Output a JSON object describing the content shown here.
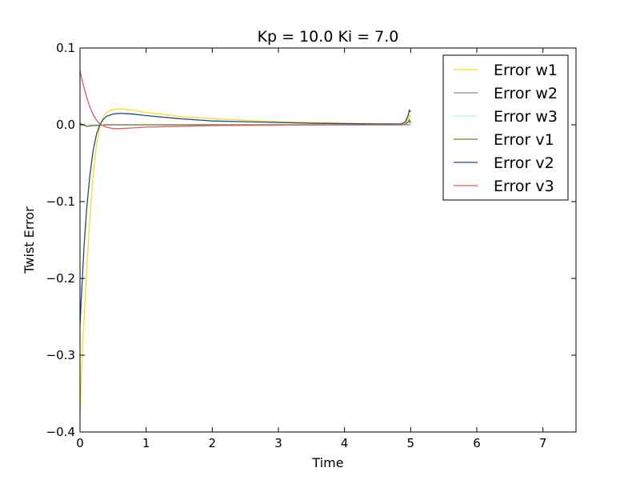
{
  "chart_data": {
    "type": "line",
    "title": "Kp = 10.0 Ki = 7.0",
    "xlabel": "Time",
    "ylabel": "Twist Error",
    "xlim": [
      0,
      7.5
    ],
    "ylim": [
      -0.4,
      0.1
    ],
    "x_ticks": [
      0,
      1,
      2,
      3,
      4,
      5,
      6,
      7
    ],
    "y_ticks": [
      -0.4,
      -0.3,
      -0.2,
      -0.1,
      0.0,
      0.1
    ],
    "x_tick_labels": [
      "0",
      "1",
      "2",
      "3",
      "4",
      "5",
      "6",
      "7"
    ],
    "y_tick_labels": [
      "−0.4",
      "−0.3",
      "−0.2",
      "−0.1",
      "0.0",
      "0.1"
    ],
    "grid": false,
    "legend_position": "top-right",
    "series": [
      {
        "name": "Error w1",
        "color": "#f2e124",
        "points": [
          [
            0,
            -0.38
          ],
          [
            0.02,
            -0.33
          ],
          [
            0.05,
            -0.27
          ],
          [
            0.1,
            -0.19
          ],
          [
            0.15,
            -0.12
          ],
          [
            0.2,
            -0.065
          ],
          [
            0.25,
            -0.025
          ],
          [
            0.3,
            -0.002
          ],
          [
            0.35,
            0.01
          ],
          [
            0.4,
            0.016
          ],
          [
            0.5,
            0.02
          ],
          [
            0.6,
            0.021
          ],
          [
            0.8,
            0.019
          ],
          [
            1.0,
            0.016
          ],
          [
            1.5,
            0.011
          ],
          [
            2.0,
            0.008
          ],
          [
            2.5,
            0.006
          ],
          [
            3.0,
            0.004
          ],
          [
            3.5,
            0.003
          ],
          [
            4.0,
            0.002
          ],
          [
            4.5,
            0.0015
          ],
          [
            4.85,
            0.001
          ],
          [
            4.92,
            0.002
          ],
          [
            4.96,
            0.008
          ],
          [
            4.98,
            0.013
          ],
          [
            5.0,
            0.008
          ]
        ]
      },
      {
        "name": "Error w2",
        "color": "#8c8c8c",
        "points": [
          [
            0,
            0.002
          ],
          [
            0.05,
            0.0
          ],
          [
            0.1,
            -0.002
          ],
          [
            0.2,
            -0.001
          ],
          [
            0.4,
            0.0
          ],
          [
            1.0,
            0.0
          ],
          [
            2.0,
            0.0
          ],
          [
            3.0,
            0.0
          ],
          [
            4.0,
            0.0
          ],
          [
            4.9,
            0.0
          ],
          [
            4.96,
            0.004
          ],
          [
            4.98,
            0.007
          ],
          [
            5.0,
            0.003
          ]
        ]
      },
      {
        "name": "Error w3",
        "color": "#b0eded",
        "points": [
          [
            0,
            0.0
          ],
          [
            0.2,
            0.0
          ],
          [
            1.0,
            0.0
          ],
          [
            2.0,
            0.0
          ],
          [
            3.0,
            0.0
          ],
          [
            4.0,
            0.0
          ],
          [
            4.9,
            0.0
          ],
          [
            4.96,
            0.003
          ],
          [
            4.98,
            0.005
          ],
          [
            5.0,
            0.002
          ]
        ]
      },
      {
        "name": "Error v1",
        "color": "#6f8231",
        "points": [
          [
            0,
            0.001
          ],
          [
            0.05,
            0.0
          ],
          [
            0.1,
            -0.002
          ],
          [
            0.2,
            -0.001
          ],
          [
            0.4,
            0.0
          ],
          [
            1.0,
            0.0
          ],
          [
            2.0,
            0.0
          ],
          [
            3.0,
            0.0
          ],
          [
            4.0,
            0.0
          ],
          [
            4.9,
            0.0
          ],
          [
            4.96,
            0.003
          ],
          [
            4.98,
            0.006
          ],
          [
            5.0,
            0.002
          ]
        ]
      },
      {
        "name": "Error v2",
        "color": "#1f4694",
        "points": [
          [
            0,
            -0.26
          ],
          [
            0.03,
            -0.21
          ],
          [
            0.06,
            -0.16
          ],
          [
            0.1,
            -0.11
          ],
          [
            0.15,
            -0.065
          ],
          [
            0.2,
            -0.033
          ],
          [
            0.25,
            -0.012
          ],
          [
            0.3,
            0.0
          ],
          [
            0.35,
            0.007
          ],
          [
            0.4,
            0.011
          ],
          [
            0.5,
            0.014
          ],
          [
            0.6,
            0.015
          ],
          [
            0.8,
            0.014
          ],
          [
            1.0,
            0.012
          ],
          [
            1.5,
            0.008
          ],
          [
            2.0,
            0.005
          ],
          [
            2.5,
            0.004
          ],
          [
            3.0,
            0.003
          ],
          [
            3.5,
            0.002
          ],
          [
            4.0,
            0.0015
          ],
          [
            4.5,
            0.001
          ],
          [
            4.85,
            0.001
          ],
          [
            4.92,
            0.004
          ],
          [
            4.96,
            0.012
          ],
          [
            4.98,
            0.019
          ],
          [
            5.0,
            0.017
          ]
        ]
      },
      {
        "name": "Error v3",
        "color": "#e05c60",
        "points": [
          [
            0,
            0.07
          ],
          [
            0.05,
            0.052
          ],
          [
            0.1,
            0.036
          ],
          [
            0.15,
            0.023
          ],
          [
            0.2,
            0.013
          ],
          [
            0.25,
            0.006
          ],
          [
            0.3,
            0.001
          ],
          [
            0.4,
            -0.003
          ],
          [
            0.5,
            -0.005
          ],
          [
            0.6,
            -0.005
          ],
          [
            0.8,
            -0.004
          ],
          [
            1.0,
            -0.003
          ],
          [
            1.5,
            -0.002
          ],
          [
            2.0,
            -0.001
          ],
          [
            3.0,
            -0.0005
          ],
          [
            4.0,
            0.0
          ],
          [
            5.0,
            0.0
          ]
        ]
      }
    ]
  }
}
